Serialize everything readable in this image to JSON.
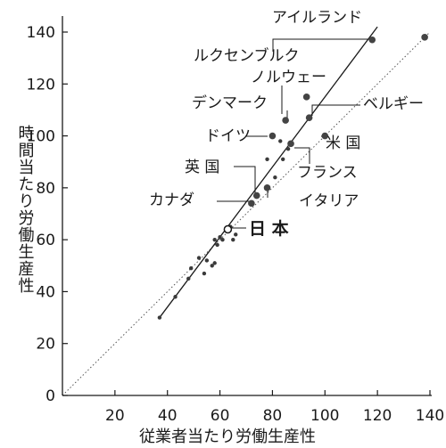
{
  "chart_data": {
    "type": "scatter",
    "xlabel": "従業者当たり労働生産性",
    "ylabel": "時間当たり労働生産性",
    "xlim": [
      0,
      140
    ],
    "ylim": [
      0,
      140
    ],
    "x_ticks": [
      20,
      40,
      60,
      80,
      100,
      120,
      140
    ],
    "y_ticks": [
      0,
      20,
      40,
      60,
      80,
      100,
      120,
      140
    ],
    "origin_label": "0",
    "grid": false,
    "labeled_points": [
      {
        "label": "アイルランド",
        "x": 118,
        "y": 137
      },
      {
        "label": "ルクセンブルク",
        "x": 138,
        "y": 138
      },
      {
        "label": "ノルウェー",
        "x": 93,
        "y": 115
      },
      {
        "label": "デンマーク",
        "x": 85,
        "y": 106
      },
      {
        "label": "ベルギー",
        "x": 94,
        "y": 107
      },
      {
        "label": "ドイツ",
        "x": 80,
        "y": 100
      },
      {
        "label": "米 国",
        "x": 100,
        "y": 100
      },
      {
        "label": "フランス",
        "x": 87,
        "y": 97
      },
      {
        "label": "英 国",
        "x": 74,
        "y": 77
      },
      {
        "label": "イタリア",
        "x": 78,
        "y": 80
      },
      {
        "label": "カナダ",
        "x": 72,
        "y": 74
      },
      {
        "label": "日 本",
        "x": 63,
        "y": 64
      }
    ],
    "other_points": [
      {
        "x": 37,
        "y": 30
      },
      {
        "x": 43,
        "y": 38
      },
      {
        "x": 48,
        "y": 45
      },
      {
        "x": 49,
        "y": 49
      },
      {
        "x": 52,
        "y": 53
      },
      {
        "x": 54,
        "y": 47
      },
      {
        "x": 55,
        "y": 52
      },
      {
        "x": 57,
        "y": 50
      },
      {
        "x": 58,
        "y": 51
      },
      {
        "x": 58,
        "y": 60
      },
      {
        "x": 59,
        "y": 58
      },
      {
        "x": 60,
        "y": 61
      },
      {
        "x": 61,
        "y": 60
      },
      {
        "x": 64,
        "y": 65
      },
      {
        "x": 65,
        "y": 60
      },
      {
        "x": 66,
        "y": 62
      },
      {
        "x": 78,
        "y": 91
      },
      {
        "x": 81,
        "y": 84
      },
      {
        "x": 83,
        "y": 98
      },
      {
        "x": 84,
        "y": 91
      },
      {
        "x": 86,
        "y": 95
      }
    ],
    "regression_line": [
      [
        37,
        30
      ],
      [
        120,
        142
      ]
    ],
    "reference_line": [
      [
        0,
        0
      ],
      [
        140,
        140
      ]
    ]
  }
}
